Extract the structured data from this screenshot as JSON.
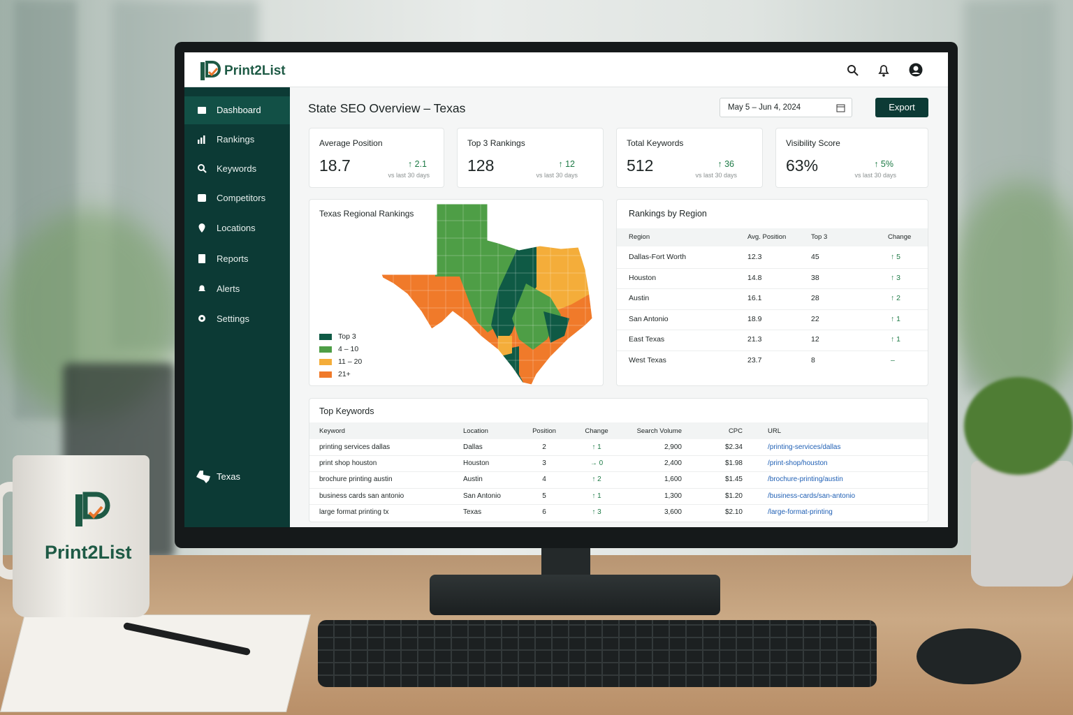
{
  "header": {
    "brand": "Print2List"
  },
  "sidebar": {
    "items": [
      "Dashboard",
      "Rankings",
      "Keywords",
      "Competitors",
      "Locations",
      "Reports",
      "Alerts",
      "Settings"
    ],
    "state": "Texas"
  },
  "page": {
    "title": "State SEO Overview – Texas",
    "date_range": "May 5 – Jun 4, 2024",
    "export": "Export"
  },
  "kpis": [
    {
      "label": "Average Position",
      "value": "18.7",
      "change": "↑ 2.1",
      "note": "vs last 30 days"
    },
    {
      "label": "Top 3 Rankings",
      "value": "128",
      "change": "↑ 12",
      "note": "vs last 30 days"
    },
    {
      "label": "Total Keywords",
      "value": "512",
      "change": "↑ 36",
      "note": "vs last 30 days"
    },
    {
      "label": "Visibility Score",
      "value": "63%",
      "change": "↑ 5%",
      "note": "vs last 30 days"
    }
  ],
  "map": {
    "title": "Texas Regional Rankings",
    "legend": [
      "Top 3",
      "4 – 10",
      "11 – 20",
      "21+"
    ],
    "legend_colors": [
      "#0f5a45",
      "#4e9e46",
      "#f4ad3a",
      "#f07a2a"
    ]
  },
  "regions": {
    "title": "Rankings by Region",
    "columns": [
      "Region",
      "Avg. Position",
      "Top 3",
      "Change"
    ],
    "rows": [
      [
        "Dallas-Fort Worth",
        "12.3",
        "45",
        "↑ 5"
      ],
      [
        "Houston",
        "14.8",
        "38",
        "↑ 3"
      ],
      [
        "Austin",
        "16.1",
        "28",
        "↑ 2"
      ],
      [
        "San Antonio",
        "18.9",
        "22",
        "↑ 1"
      ],
      [
        "East Texas",
        "21.3",
        "12",
        "↑ 1"
      ],
      [
        "West Texas",
        "23.7",
        "8",
        "–"
      ]
    ]
  },
  "keywords": {
    "title": "Top Keywords",
    "columns": [
      "Keyword",
      "Location",
      "Position",
      "Change",
      "Search Volume",
      "CPC",
      "URL"
    ],
    "rows": [
      [
        "printing services dallas",
        "Dallas",
        "2",
        "↑ 1",
        "2,900",
        "$2.34",
        "/printing-services/dallas"
      ],
      [
        "print shop houston",
        "Houston",
        "3",
        "→ 0",
        "2,400",
        "$1.98",
        "/print-shop/houston"
      ],
      [
        "brochure printing austin",
        "Austin",
        "4",
        "↑ 2",
        "1,600",
        "$1.45",
        "/brochure-printing/austin"
      ],
      [
        "business cards san antonio",
        "San Antonio",
        "5",
        "↑ 1",
        "1,300",
        "$1.20",
        "/business-cards/san-antonio"
      ],
      [
        "large format printing tx",
        "Texas",
        "6",
        "↑ 3",
        "3,600",
        "$2.10",
        "/large-format-printing"
      ]
    ]
  },
  "mug": {
    "brand": "Print2List"
  }
}
